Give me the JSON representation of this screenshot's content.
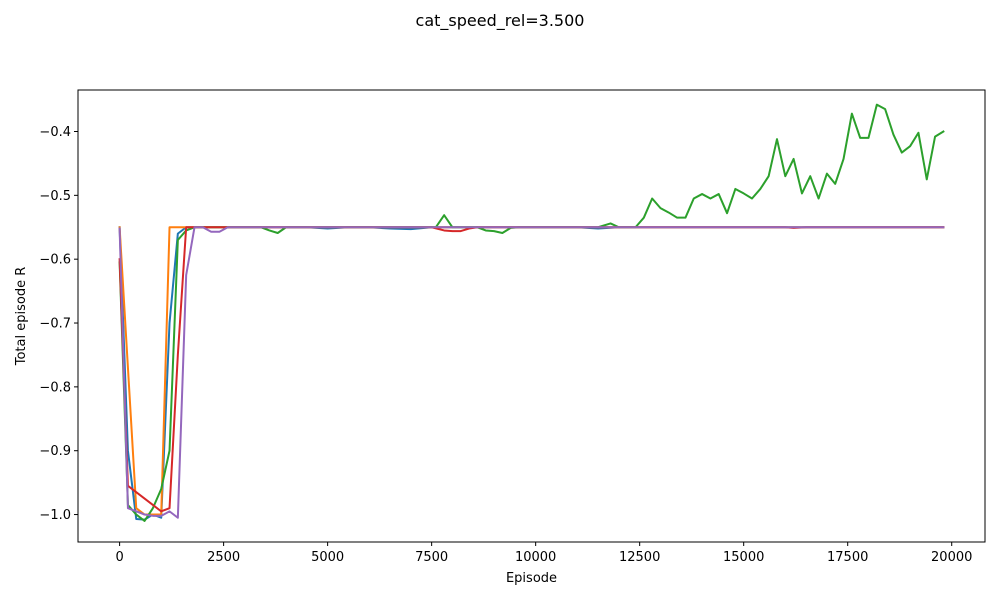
{
  "chart_data": {
    "type": "line",
    "title": "cat_speed_rel=3.500",
    "xlabel": "Episode",
    "ylabel": "Total episode R",
    "xlim": [
      -1000,
      20800
    ],
    "ylim": [
      -1.043,
      -0.335
    ],
    "xticks": [
      0,
      2500,
      5000,
      7500,
      10000,
      12500,
      15000,
      17500,
      20000
    ],
    "yticks": [
      -1.0,
      -0.9,
      -0.8,
      -0.7,
      -0.6,
      -0.5,
      -0.4
    ],
    "xtick_labels": [
      "0",
      "2500",
      "5000",
      "7500",
      "10000",
      "12500",
      "15000",
      "17500",
      "20000"
    ],
    "ytick_labels": [
      "−1.0",
      "−0.9",
      "−0.8",
      "−0.7",
      "−0.6",
      "−0.5",
      "−0.4"
    ],
    "grid": false,
    "series": [
      {
        "color": "#1f77b4",
        "x": [
          0,
          200,
          400,
          600,
          800,
          1000,
          1200,
          1400,
          1600,
          1800,
          2000,
          2500,
          3000,
          3500,
          4000,
          4500,
          5000,
          5500,
          6000,
          6500,
          7000,
          7500,
          8000,
          8500,
          9000,
          9500,
          10000,
          10500,
          11000,
          11500,
          12000,
          12500,
          13000,
          13500,
          14000,
          14500,
          15000,
          15500,
          16000,
          16500,
          17000,
          17500,
          18000,
          18500,
          19000,
          19500,
          19800
        ],
        "y": [
          -0.55,
          -0.9,
          -1.007,
          -1.008,
          -1.0,
          -1.005,
          -0.7,
          -0.56,
          -0.55,
          -0.55,
          -0.55,
          -0.55,
          -0.55,
          -0.55,
          -0.55,
          -0.55,
          -0.552,
          -0.55,
          -0.55,
          -0.552,
          -0.553,
          -0.55,
          -0.55,
          -0.55,
          -0.55,
          -0.55,
          -0.55,
          -0.55,
          -0.55,
          -0.552,
          -0.55,
          -0.55,
          -0.55,
          -0.55,
          -0.55,
          -0.55,
          -0.55,
          -0.55,
          -0.55,
          -0.55,
          -0.55,
          -0.55,
          -0.55,
          -0.55,
          -0.55,
          -0.55,
          -0.55
        ]
      },
      {
        "color": "#ff7f0e",
        "x": [
          0,
          400,
          600,
          800,
          1000,
          1200,
          1400,
          1600,
          1800,
          2000,
          2500,
          5000,
          7500,
          10000,
          12500,
          15000,
          17500,
          19800
        ],
        "y": [
          -0.55,
          -0.99,
          -1.0,
          -1.0,
          -1.0,
          -0.55,
          -0.55,
          -0.55,
          -0.55,
          -0.55,
          -0.55,
          -0.55,
          -0.55,
          -0.55,
          -0.55,
          -0.55,
          -0.55,
          -0.55
        ]
      },
      {
        "color": "#2ca02c",
        "x": [
          0,
          200,
          400,
          600,
          800,
          1000,
          1200,
          1400,
          1600,
          1800,
          2000,
          2200,
          2400,
          2600,
          2800,
          3000,
          3200,
          3400,
          3600,
          3800,
          4000,
          4200,
          4400,
          4600,
          4800,
          5000,
          5500,
          6000,
          6500,
          7000,
          7500,
          7600,
          7800,
          8000,
          8200,
          8400,
          8600,
          8800,
          9000,
          9200,
          9400,
          9600,
          9800,
          10000,
          10500,
          11000,
          11500,
          11800,
          12000,
          12200,
          12400,
          12600,
          12800,
          13000,
          13200,
          13400,
          13600,
          13800,
          14000,
          14200,
          14400,
          14600,
          14800,
          15000,
          15200,
          15400,
          15600,
          15800,
          16000,
          16200,
          16400,
          16600,
          16800,
          17000,
          17200,
          17400,
          17600,
          17800,
          18000,
          18200,
          18400,
          18600,
          18800,
          19000,
          19200,
          19400,
          19600,
          19800
        ],
        "y": [
          -0.605,
          -0.985,
          -1.0,
          -1.01,
          -0.99,
          -0.96,
          -0.9,
          -0.57,
          -0.555,
          -0.55,
          -0.55,
          -0.55,
          -0.55,
          -0.55,
          -0.55,
          -0.55,
          -0.55,
          -0.55,
          -0.555,
          -0.559,
          -0.55,
          -0.55,
          -0.55,
          -0.55,
          -0.55,
          -0.55,
          -0.55,
          -0.55,
          -0.55,
          -0.55,
          -0.55,
          -0.55,
          -0.531,
          -0.55,
          -0.55,
          -0.55,
          -0.55,
          -0.555,
          -0.556,
          -0.559,
          -0.551,
          -0.55,
          -0.55,
          -0.55,
          -0.55,
          -0.55,
          -0.55,
          -0.544,
          -0.55,
          -0.55,
          -0.55,
          -0.535,
          -0.505,
          -0.52,
          -0.527,
          -0.535,
          -0.535,
          -0.505,
          -0.498,
          -0.505,
          -0.498,
          -0.528,
          -0.49,
          -0.497,
          -0.505,
          -0.49,
          -0.47,
          -0.412,
          -0.47,
          -0.443,
          -0.497,
          -0.47,
          -0.505,
          -0.466,
          -0.482,
          -0.443,
          -0.372,
          -0.41,
          -0.41,
          -0.358,
          -0.365,
          -0.405,
          -0.433,
          -0.423,
          -0.402,
          -0.475,
          -0.408,
          -0.4
        ]
      },
      {
        "color": "#d62728",
        "x": [
          0,
          200,
          400,
          600,
          800,
          1000,
          1200,
          1400,
          1600,
          1800,
          2000,
          2500,
          3000,
          3500,
          4000,
          4500,
          5000,
          5500,
          6000,
          6500,
          7000,
          7500,
          7800,
          8000,
          8200,
          8400,
          8600,
          9000,
          9500,
          10000,
          10500,
          11000,
          11500,
          12000,
          12500,
          13000,
          13500,
          14000,
          14500,
          15000,
          15500,
          16000,
          16200,
          16500,
          17000,
          17500,
          18000,
          18500,
          19000,
          19500,
          19800
        ],
        "y": [
          -0.6,
          -0.955,
          -0.965,
          -0.975,
          -0.985,
          -0.995,
          -0.99,
          -0.75,
          -0.55,
          -0.55,
          -0.55,
          -0.55,
          -0.55,
          -0.55,
          -0.55,
          -0.55,
          -0.55,
          -0.55,
          -0.55,
          -0.55,
          -0.55,
          -0.55,
          -0.555,
          -0.556,
          -0.556,
          -0.552,
          -0.55,
          -0.55,
          -0.55,
          -0.55,
          -0.55,
          -0.55,
          -0.55,
          -0.55,
          -0.55,
          -0.55,
          -0.55,
          -0.55,
          -0.55,
          -0.55,
          -0.55,
          -0.55,
          -0.551,
          -0.55,
          -0.55,
          -0.55,
          -0.55,
          -0.55,
          -0.55,
          -0.55,
          -0.55
        ]
      },
      {
        "color": "#9467bd",
        "x": [
          0,
          200,
          400,
          600,
          800,
          1000,
          1200,
          1400,
          1600,
          1800,
          2000,
          2200,
          2400,
          2600,
          2800,
          3000,
          3500,
          4000,
          4500,
          5000,
          5500,
          6000,
          6500,
          7000,
          7500,
          8000,
          8500,
          9000,
          10000,
          11000,
          12000,
          13000,
          14000,
          15000,
          16000,
          17000,
          18000,
          19000,
          19800
        ],
        "y": [
          -0.552,
          -0.99,
          -0.995,
          -1.0,
          -1.002,
          -1.002,
          -0.995,
          -1.005,
          -0.625,
          -0.55,
          -0.55,
          -0.557,
          -0.557,
          -0.55,
          -0.55,
          -0.55,
          -0.55,
          -0.55,
          -0.55,
          -0.55,
          -0.55,
          -0.55,
          -0.55,
          -0.55,
          -0.55,
          -0.55,
          -0.55,
          -0.55,
          -0.55,
          -0.55,
          -0.55,
          -0.55,
          -0.55,
          -0.55,
          -0.55,
          -0.55,
          -0.55,
          -0.55,
          -0.55
        ]
      }
    ]
  }
}
